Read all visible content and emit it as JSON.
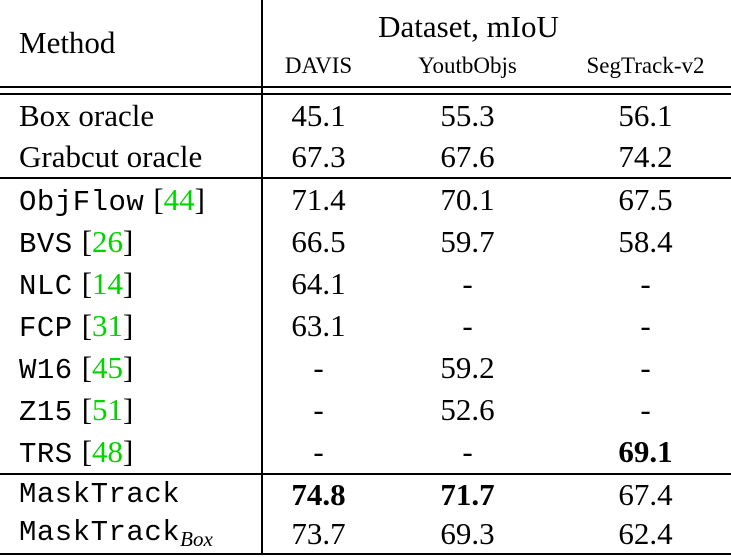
{
  "table": {
    "citation_color": "#00d400",
    "punctuation": {
      "cite_open": "[",
      "cite_close": "]"
    },
    "header": {
      "method_label": "Method",
      "group_label": "Dataset, mIoU",
      "columns": [
        "DAVIS",
        "YoutbObjs",
        "SegTrack-v2"
      ]
    },
    "rows": [
      {
        "method": "Box oracle",
        "values": [
          "45.1",
          "55.3",
          "56.1"
        ]
      },
      {
        "method": "Grabcut oracle",
        "values": [
          "67.3",
          "67.6",
          "74.2"
        ]
      },
      {
        "method": "ObjFlow",
        "cite": "44",
        "values": [
          "71.4",
          "70.1",
          "67.5"
        ]
      },
      {
        "method": "BVS",
        "cite": "26",
        "values": [
          "66.5",
          "59.7",
          "58.4"
        ]
      },
      {
        "method": "NLC",
        "cite": "14",
        "values": [
          "64.1",
          "-",
          "-"
        ]
      },
      {
        "method": "FCP",
        "cite": "31",
        "values": [
          "63.1",
          "-",
          "-"
        ]
      },
      {
        "method": "W16",
        "cite": "45",
        "values": [
          "-",
          "59.2",
          "-"
        ]
      },
      {
        "method": "Z15",
        "cite": "51",
        "values": [
          "-",
          "52.6",
          "-"
        ]
      },
      {
        "method": "TRS",
        "cite": "48",
        "values": [
          "-",
          "-",
          "69.1"
        ]
      },
      {
        "method": "MaskTrack",
        "values": [
          "74.8",
          "71.7",
          "67.4"
        ]
      },
      {
        "method": "MaskTrack",
        "subscript": "Box",
        "values": [
          "73.7",
          "69.3",
          "62.4"
        ]
      }
    ]
  }
}
